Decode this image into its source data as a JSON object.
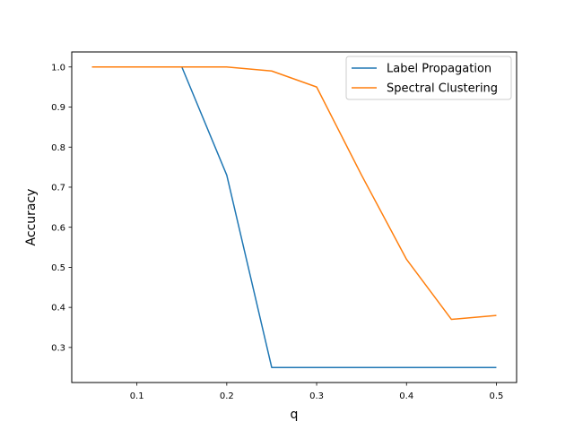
{
  "chart_data": {
    "type": "line",
    "title": "",
    "xlabel": "q",
    "ylabel": "Accuracy",
    "xlim": [
      0.0275,
      0.5225
    ],
    "ylim": [
      0.2125,
      1.0375
    ],
    "xticks": [
      0.1,
      0.2,
      0.3,
      0.4,
      0.5
    ],
    "xtick_labels": [
      "0.1",
      "0.2",
      "0.3",
      "0.4",
      "0.5"
    ],
    "yticks": [
      0.3,
      0.4,
      0.5,
      0.6,
      0.7,
      0.8,
      0.9,
      1.0
    ],
    "ytick_labels": [
      "0.3",
      "0.4",
      "0.5",
      "0.6",
      "0.7",
      "0.8",
      "0.9",
      "1.0"
    ],
    "grid": false,
    "legend_position": "top-right",
    "x": [
      0.05,
      0.1,
      0.15,
      0.2,
      0.25,
      0.3,
      0.35,
      0.4,
      0.45,
      0.5
    ],
    "series": [
      {
        "name": "Label Propagation",
        "color": "#1f77b4",
        "values": [
          1.0,
          1.0,
          1.0,
          0.73,
          0.25,
          0.25,
          0.25,
          0.25,
          0.25,
          0.25
        ]
      },
      {
        "name": "Spectral Clustering",
        "color": "#ff7f0e",
        "values": [
          1.0,
          1.0,
          1.0,
          1.0,
          0.99,
          0.95,
          0.73,
          0.52,
          0.37,
          0.38
        ]
      }
    ]
  }
}
